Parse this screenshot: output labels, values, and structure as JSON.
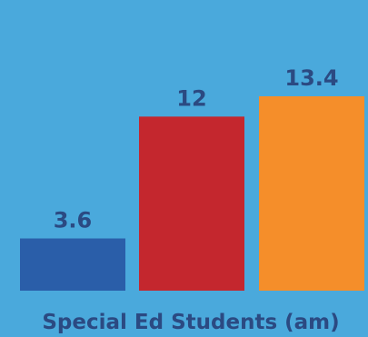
{
  "chart_data": {
    "type": "bar",
    "categories": [
      "",
      "",
      ""
    ],
    "values": [
      3.6,
      12,
      13.4
    ],
    "value_labels": [
      "3.6",
      "12",
      "13.4"
    ],
    "colors": [
      "#2a5ea9",
      "#c4272e",
      "#f58e2a"
    ],
    "xlabel": "Special Ed Students (am)",
    "ylabel": "",
    "title": "",
    "ylim": [
      0,
      13.4
    ],
    "grid": false,
    "legend": "none"
  },
  "colors": {
    "background": "#4aa9dc",
    "text": "#2b4a82"
  }
}
